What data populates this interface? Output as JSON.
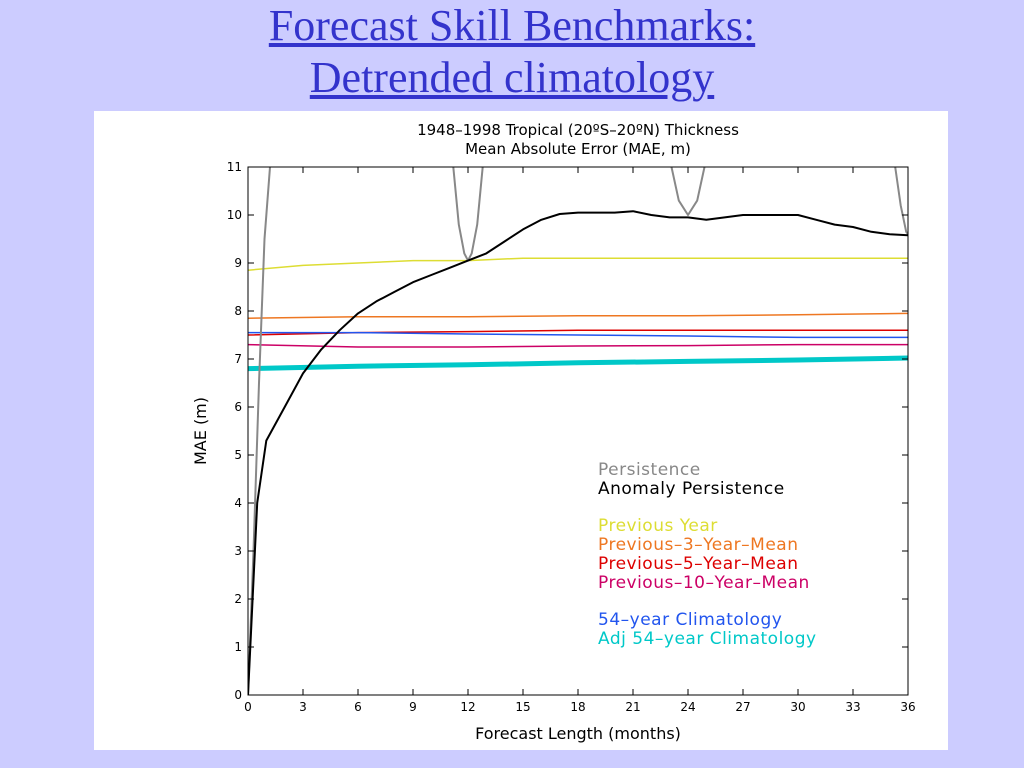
{
  "slide": {
    "title_line1": "Forecast Skill Benchmarks:",
    "title_line2": "Detrended climatology"
  },
  "chart_data": {
    "type": "line",
    "title": "1948–1998 Tropical (20ºS–20ºN) Thickness",
    "subtitle": "Mean Absolute Error (MAE, m)",
    "xlabel": "Forecast Length (months)",
    "ylabel": "MAE (m)",
    "xlim": [
      0,
      36
    ],
    "ylim": [
      0,
      11
    ],
    "xticks": [
      0,
      3,
      6,
      9,
      12,
      15,
      18,
      21,
      24,
      27,
      30,
      33,
      36
    ],
    "yticks": [
      0,
      1,
      2,
      3,
      4,
      5,
      6,
      7,
      8,
      9,
      10,
      11
    ],
    "grid": false,
    "legend_position": "lower-right",
    "series": [
      {
        "name": "Persistence",
        "color": "#888888",
        "stroke": 2,
        "segments": [
          [
            [
              0,
              0
            ],
            [
              0.3,
              3
            ],
            [
              0.6,
              6.5
            ],
            [
              0.9,
              9.5
            ],
            [
              1.2,
              11
            ]
          ],
          [
            [
              11.2,
              11
            ],
            [
              11.5,
              9.8
            ],
            [
              11.8,
              9.2
            ],
            [
              12,
              9.05
            ],
            [
              12.2,
              9.2
            ],
            [
              12.5,
              9.8
            ],
            [
              12.8,
              11
            ]
          ],
          [
            [
              23.1,
              11
            ],
            [
              23.5,
              10.3
            ],
            [
              24,
              10.0
            ],
            [
              24.5,
              10.3
            ],
            [
              24.9,
              11
            ]
          ],
          [
            [
              35.3,
              11
            ],
            [
              35.6,
              10.2
            ],
            [
              35.9,
              9.65
            ],
            [
              36,
              9.6
            ]
          ]
        ]
      },
      {
        "name": "Anomaly Persistence",
        "color": "#000000",
        "stroke": 2,
        "x": [
          0,
          0.5,
          1,
          2,
          3,
          4,
          5,
          6,
          7,
          8,
          9,
          10,
          11,
          12,
          13,
          14,
          15,
          16,
          17,
          18,
          19,
          20,
          21,
          22,
          23,
          24,
          25,
          26,
          27,
          28,
          29,
          30,
          31,
          32,
          33,
          34,
          35,
          36
        ],
        "y": [
          0,
          4.0,
          5.3,
          6.0,
          6.7,
          7.2,
          7.6,
          7.95,
          8.2,
          8.4,
          8.6,
          8.75,
          8.9,
          9.05,
          9.2,
          9.45,
          9.7,
          9.9,
          10.02,
          10.05,
          10.05,
          10.05,
          10.08,
          10.0,
          9.95,
          9.95,
          9.9,
          9.95,
          10.0,
          10.0,
          10.0,
          10.0,
          9.9,
          9.8,
          9.75,
          9.65,
          9.6,
          9.58
        ]
      },
      {
        "name": "Previous Year",
        "color": "#dddd33",
        "stroke": 1.5,
        "x": [
          0,
          3,
          6,
          9,
          12,
          15,
          18,
          21,
          24,
          27,
          30,
          33,
          36
        ],
        "y": [
          8.85,
          8.95,
          9.0,
          9.05,
          9.05,
          9.1,
          9.1,
          9.1,
          9.1,
          9.1,
          9.1,
          9.1,
          9.1
        ]
      },
      {
        "name": "Previous–3–Year–Mean",
        "color": "#ee7722",
        "stroke": 1.5,
        "x": [
          0,
          6,
          12,
          18,
          24,
          30,
          36
        ],
        "y": [
          7.85,
          7.88,
          7.88,
          7.9,
          7.9,
          7.92,
          7.95
        ]
      },
      {
        "name": "Previous–5–Year–Mean",
        "color": "#dd0000",
        "stroke": 1.5,
        "x": [
          0,
          6,
          12,
          18,
          24,
          30,
          36
        ],
        "y": [
          7.5,
          7.55,
          7.57,
          7.6,
          7.6,
          7.6,
          7.6
        ]
      },
      {
        "name": "Previous–10–Year–Mean",
        "color": "#cc0066",
        "stroke": 1.5,
        "x": [
          0,
          6,
          12,
          18,
          24,
          30,
          36
        ],
        "y": [
          7.3,
          7.25,
          7.25,
          7.27,
          7.28,
          7.3,
          7.3
        ]
      },
      {
        "name": "54–year Climatology",
        "color": "#2255ee",
        "stroke": 1.5,
        "x": [
          0,
          6,
          12,
          18,
          24,
          30,
          36
        ],
        "y": [
          7.55,
          7.55,
          7.52,
          7.5,
          7.48,
          7.45,
          7.45
        ]
      },
      {
        "name": "Adj 54–year Climatology",
        "color": "#00c8c8",
        "stroke": 5,
        "x": [
          0,
          6,
          12,
          18,
          24,
          30,
          36
        ],
        "y": [
          6.8,
          6.85,
          6.88,
          6.92,
          6.95,
          6.98,
          7.02
        ]
      }
    ],
    "legend_groups": [
      [
        0,
        1
      ],
      [
        2,
        3,
        4,
        5
      ],
      [
        6,
        7
      ]
    ]
  }
}
